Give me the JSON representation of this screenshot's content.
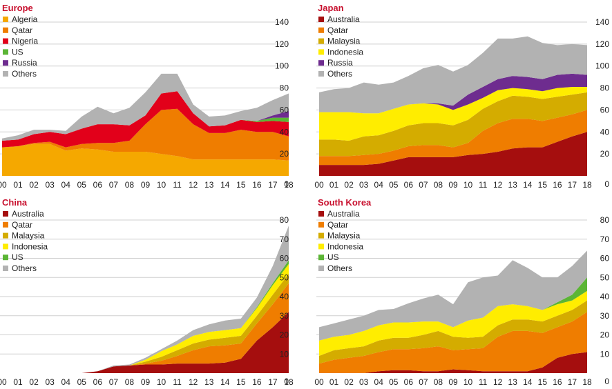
{
  "colors": {
    "Algeria": "#f5a800",
    "Qatar": "#ef7d00",
    "Nigeria": "#e2001a",
    "US": "#5bb535",
    "Russia": "#6e2c8f",
    "Others": "#b2b2b2",
    "Australia": "#a50e0e",
    "Malaysia": "#d4ac00",
    "Indonesia": "#ffed00"
  },
  "chart_data": [
    {
      "type": "area",
      "title": "Europe",
      "categories": [
        "00",
        "01",
        "02",
        "03",
        "04",
        "05",
        "06",
        "07",
        "08",
        "09",
        "10",
        "11",
        "12",
        "13",
        "14",
        "15",
        "16",
        "17",
        "18"
      ],
      "ylim": [
        0,
        140
      ],
      "yticks": [
        0,
        20,
        40,
        60,
        80,
        100,
        120,
        140
      ],
      "legend": [
        "Algeria",
        "Qatar",
        "Nigeria",
        "US",
        "Russia",
        "Others"
      ],
      "series": [
        {
          "name": "Algeria",
          "values": [
            26,
            27,
            29,
            29,
            23,
            25,
            24,
            22,
            22,
            22,
            20,
            18,
            15,
            15,
            15,
            15,
            15,
            15,
            14
          ]
        },
        {
          "name": "Qatar",
          "values": [
            0,
            0,
            1,
            2,
            3,
            4,
            6,
            8,
            10,
            25,
            40,
            43,
            32,
            24,
            24,
            27,
            25,
            25,
            22
          ]
        },
        {
          "name": "Nigeria",
          "values": [
            6,
            6,
            8,
            9,
            12,
            14,
            17,
            17,
            14,
            8,
            15,
            16,
            10,
            6,
            7,
            9,
            9,
            10,
            13
          ]
        },
        {
          "name": "US",
          "values": [
            0,
            0,
            0,
            0,
            0,
            0,
            0,
            0,
            0,
            0,
            0,
            0,
            0,
            0,
            0,
            0,
            1,
            3,
            4
          ]
        },
        {
          "name": "Russia",
          "values": [
            0,
            0,
            0,
            0,
            0,
            0,
            0,
            0,
            0,
            0,
            0,
            0,
            0,
            0,
            0,
            0,
            0,
            2,
            6
          ]
        },
        {
          "name": "Others",
          "values": [
            2,
            4,
            4,
            2,
            3,
            11,
            16,
            10,
            16,
            21,
            18,
            16,
            8,
            9,
            9,
            8,
            12,
            14,
            16
          ]
        }
      ]
    },
    {
      "type": "area",
      "title": "Japan",
      "categories": [
        "00",
        "01",
        "02",
        "03",
        "04",
        "05",
        "06",
        "07",
        "08",
        "09",
        "10",
        "11",
        "12",
        "13",
        "14",
        "15",
        "16",
        "17",
        "18"
      ],
      "ylim": [
        0,
        140
      ],
      "yticks": [
        0,
        20,
        40,
        60,
        80,
        100,
        120,
        140
      ],
      "legend": [
        "Australia",
        "Qatar",
        "Malaysia",
        "Indonesia",
        "Russia",
        "Others"
      ],
      "series": [
        {
          "name": "Australia",
          "values": [
            10,
            10,
            10,
            10,
            11,
            14,
            17,
            17,
            17,
            17,
            19,
            20,
            22,
            25,
            26,
            26,
            31,
            36,
            40
          ]
        },
        {
          "name": "Qatar",
          "values": [
            8,
            8,
            8,
            9,
            9,
            9,
            10,
            11,
            11,
            9,
            11,
            21,
            26,
            27,
            26,
            24,
            22,
            20,
            20
          ]
        },
        {
          "name": "Malaysia",
          "values": [
            15,
            15,
            14,
            17,
            17,
            18,
            19,
            20,
            20,
            20,
            21,
            20,
            20,
            21,
            20,
            20,
            19,
            18,
            16
          ]
        },
        {
          "name": "Indonesia",
          "values": [
            25,
            25,
            26,
            21,
            20,
            20,
            19,
            18,
            17,
            14,
            14,
            10,
            10,
            7,
            7,
            7,
            8,
            7,
            5
          ]
        },
        {
          "name": "Russia",
          "values": [
            0,
            0,
            0,
            0,
            0,
            0,
            0,
            0,
            1,
            4,
            9,
            10,
            10,
            11,
            11,
            11,
            12,
            12,
            11
          ]
        },
        {
          "name": "Others",
          "values": [
            18,
            21,
            22,
            28,
            26,
            24,
            26,
            32,
            35,
            31,
            27,
            31,
            37,
            34,
            37,
            33,
            27,
            27,
            27
          ]
        }
      ]
    },
    {
      "type": "area",
      "title": "China",
      "categories": [
        "00",
        "01",
        "02",
        "03",
        "04",
        "05",
        "06",
        "07",
        "08",
        "09",
        "10",
        "11",
        "12",
        "13",
        "14",
        "15",
        "16",
        "17",
        "18"
      ],
      "ylim": [
        0,
        80
      ],
      "yticks": [
        0,
        10,
        20,
        30,
        40,
        50,
        60,
        70,
        80
      ],
      "legend": [
        "Australia",
        "Qatar",
        "Malaysia",
        "Indonesia",
        "US",
        "Others"
      ],
      "series": [
        {
          "name": "Australia",
          "values": [
            0,
            0,
            0,
            0,
            0,
            0,
            1,
            3.5,
            4,
            4.5,
            4.5,
            5,
            5,
            5,
            5.5,
            7.5,
            17,
            24,
            32
          ]
        },
        {
          "name": "Qatar",
          "values": [
            0,
            0,
            0,
            0,
            0,
            0,
            0,
            0,
            0,
            0.5,
            2,
            4,
            7,
            9,
            9,
            8,
            9,
            12,
            15
          ]
        },
        {
          "name": "Malaysia",
          "values": [
            0,
            0,
            0,
            0,
            0,
            0,
            0,
            0,
            0,
            1,
            2,
            3,
            3.5,
            3.5,
            4,
            4,
            4,
            5,
            5
          ]
        },
        {
          "name": "Indonesia",
          "values": [
            0,
            0,
            0,
            0,
            0,
            0,
            0,
            0,
            0,
            1,
            3,
            3,
            4,
            4,
            4,
            4,
            4,
            5,
            5
          ]
        },
        {
          "name": "US",
          "values": [
            0,
            0,
            0,
            0,
            0,
            0,
            0,
            0,
            0,
            0,
            0,
            0,
            0,
            0,
            0,
            0,
            0.5,
            1,
            2
          ]
        },
        {
          "name": "Others",
          "values": [
            0,
            0,
            0,
            0,
            0,
            0,
            0,
            0.5,
            0.5,
            1,
            1,
            2,
            3,
            4,
            5,
            5,
            5,
            9,
            18
          ]
        }
      ]
    },
    {
      "type": "area",
      "title": "South Korea",
      "categories": [
        "00",
        "01",
        "02",
        "03",
        "04",
        "05",
        "06",
        "07",
        "08",
        "09",
        "10",
        "11",
        "12",
        "13",
        "14",
        "15",
        "16",
        "17",
        "18"
      ],
      "ylim": [
        0,
        80
      ],
      "yticks": [
        0,
        10,
        20,
        30,
        40,
        50,
        60,
        70,
        80
      ],
      "legend": [
        "Australia",
        "Qatar",
        "Malaysia",
        "Indonesia",
        "US",
        "Others"
      ],
      "series": [
        {
          "name": "Australia",
          "values": [
            0,
            0,
            0,
            0,
            1,
            1.5,
            1.5,
            1,
            1,
            2,
            1.5,
            1,
            1,
            1,
            1,
            3,
            8,
            10,
            11
          ]
        },
        {
          "name": "Qatar",
          "values": [
            5,
            7,
            8,
            9,
            10,
            11,
            11,
            12,
            13,
            10,
            11,
            12,
            18,
            21,
            21,
            18,
            16,
            17,
            21
          ]
        },
        {
          "name": "Malaysia",
          "values": [
            4,
            5,
            5,
            5,
            6,
            6,
            6,
            7,
            8,
            7,
            6,
            6,
            6,
            6,
            6,
            6,
            6,
            6,
            6
          ]
        },
        {
          "name": "Indonesia",
          "values": [
            8,
            7,
            7,
            8,
            8,
            8,
            8,
            7,
            5,
            5,
            9,
            10,
            10,
            8,
            7,
            6,
            6,
            5,
            5
          ]
        },
        {
          "name": "US",
          "values": [
            0,
            0,
            0,
            0,
            0,
            0,
            0,
            0,
            0,
            0,
            0,
            0,
            0,
            0,
            0,
            0,
            1,
            3,
            7
          ]
        },
        {
          "name": "Others",
          "values": [
            7,
            7,
            8,
            8,
            8,
            7,
            10,
            12,
            14,
            12,
            20,
            21,
            16,
            23,
            20,
            17,
            13,
            15,
            14
          ]
        }
      ]
    }
  ]
}
